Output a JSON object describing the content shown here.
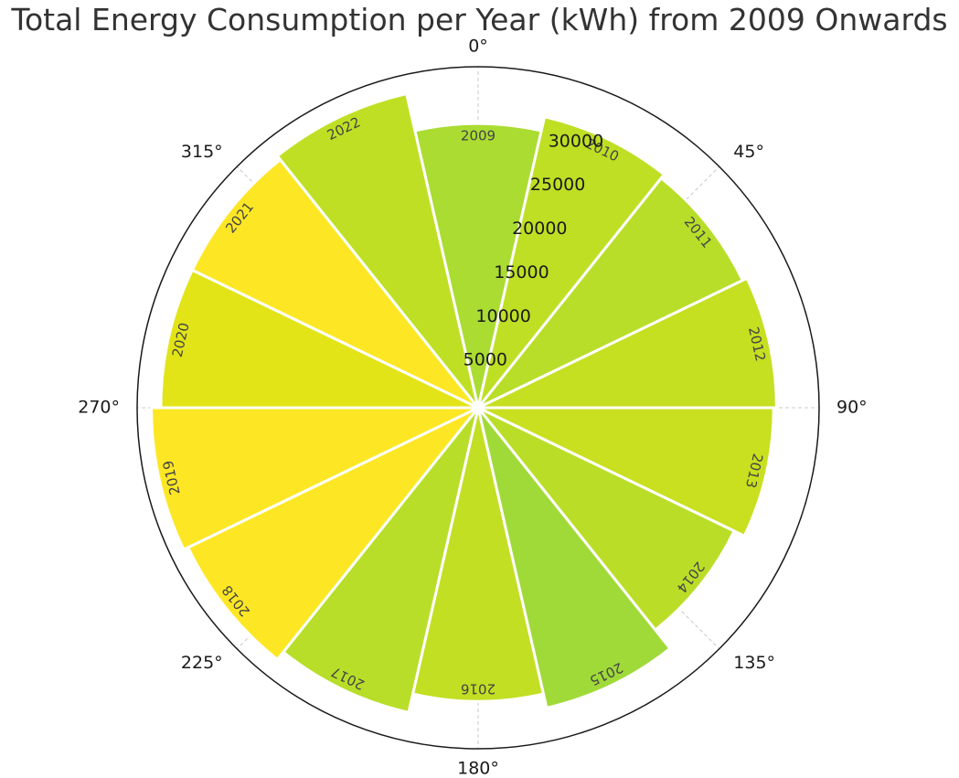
{
  "chart_data": {
    "type": "polar-bar",
    "title": "Total Energy Consumption per Year (kWh) from 2009 Onwards",
    "angle_tick_labels": [
      "0°",
      "45°",
      "90°",
      "135°",
      "180°",
      "225°",
      "270°",
      "315°"
    ],
    "radial_ticks": [
      5000,
      10000,
      15000,
      20000,
      25000,
      30000
    ],
    "radial_tick_labels": [
      "5000",
      "10000",
      "15000",
      "20000",
      "25000",
      "30000"
    ],
    "rlim": [
      0,
      36000
    ],
    "grid": true,
    "direction": "clockwise",
    "zero_location": "top",
    "bars": [
      {
        "year": "2009",
        "value": 30000,
        "color": "#aadc32"
      },
      {
        "year": "2010",
        "value": 31500,
        "color": "#bfdf24"
      },
      {
        "year": "2011",
        "value": 31000,
        "color": "#b8de29"
      },
      {
        "year": "2012",
        "value": 31500,
        "color": "#c5df21"
      },
      {
        "year": "2013",
        "value": 31200,
        "color": "#c8e020"
      },
      {
        "year": "2014",
        "value": 30000,
        "color": "#bade28"
      },
      {
        "year": "2015",
        "value": 32500,
        "color": "#a0da39"
      },
      {
        "year": "2016",
        "value": 31000,
        "color": "#c2df23"
      },
      {
        "year": "2017",
        "value": 33000,
        "color": "#b8de29"
      },
      {
        "year": "2018",
        "value": 34000,
        "color": "#fde725"
      },
      {
        "year": "2019",
        "value": 34500,
        "color": "#fde725"
      },
      {
        "year": "2020",
        "value": 33500,
        "color": "#e2e418"
      },
      {
        "year": "2021",
        "value": 33500,
        "color": "#fde725"
      },
      {
        "year": "2022",
        "value": 34000,
        "color": "#bfdf24"
      }
    ]
  }
}
